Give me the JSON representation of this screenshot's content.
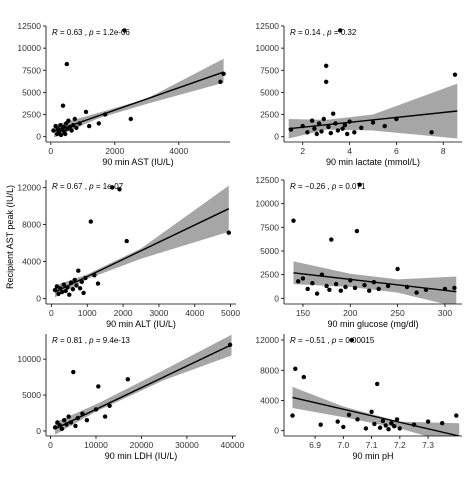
{
  "figure": {
    "shared_ylabel": "Recipient AST peak (IU/L)",
    "colors": {
      "points": "#000000",
      "fit_line": "#000000",
      "confidence_band": "#a6a6a6",
      "axis": "#000000"
    }
  },
  "chart_data": [
    {
      "type": "scatter",
      "xlabel": "90 min AST (IU/L)",
      "ylabel": "",
      "stat": {
        "r": "0.63",
        "p": "1.2e-06"
      },
      "xlim": [
        -150,
        5600
      ],
      "ylim": [
        -600,
        12500
      ],
      "xticks": [
        0,
        2000,
        4000
      ],
      "xticklabels": [
        "0",
        "2000",
        "4000"
      ],
      "yticks": [
        0,
        2500,
        5000,
        7500,
        10000,
        12500
      ],
      "yticklabels": [
        "0",
        "2500",
        "5000",
        "7500",
        "10000",
        "12500"
      ],
      "fit": {
        "x": [
          100,
          5400
        ],
        "y": [
          600,
          7300
        ]
      },
      "band": {
        "x": [
          100,
          1500,
          3000,
          5400
        ],
        "lower": [
          -100,
          2100,
          3700,
          6100
        ],
        "upper": [
          1300,
          2700,
          4300,
          8800
        ]
      },
      "points": [
        [
          80,
          700
        ],
        [
          150,
          1200
        ],
        [
          200,
          300
        ],
        [
          220,
          900
        ],
        [
          250,
          500
        ],
        [
          300,
          1300
        ],
        [
          320,
          200
        ],
        [
          350,
          800
        ],
        [
          380,
          3500
        ],
        [
          400,
          1100
        ],
        [
          420,
          600
        ],
        [
          450,
          300
        ],
        [
          480,
          1500
        ],
        [
          500,
          8200
        ],
        [
          520,
          900
        ],
        [
          550,
          1800
        ],
        [
          600,
          1100
        ],
        [
          650,
          700
        ],
        [
          700,
          1300
        ],
        [
          750,
          2000
        ],
        [
          800,
          1000
        ],
        [
          900,
          1500
        ],
        [
          1100,
          2800
        ],
        [
          1200,
          1200
        ],
        [
          1500,
          1500
        ],
        [
          1700,
          2500
        ],
        [
          2300,
          12000
        ],
        [
          2500,
          2000
        ],
        [
          5300,
          6200
        ],
        [
          5400,
          7100
        ]
      ]
    },
    {
      "type": "scatter",
      "xlabel": "90 min lactate (mmol/L)",
      "ylabel": "",
      "stat": {
        "r": "0.14",
        "p": "0.32"
      },
      "xlim": [
        1.2,
        8.8
      ],
      "ylim": [
        -600,
        12500
      ],
      "xticks": [
        2,
        4,
        6,
        8
      ],
      "xticklabels": [
        "2",
        "4",
        "6",
        "8"
      ],
      "yticks": [
        0,
        2500,
        5000,
        7500,
        10000,
        12500
      ],
      "yticklabels": [
        "0",
        "2500",
        "5000",
        "7500",
        "10000",
        "12500"
      ],
      "fit": {
        "x": [
          1.4,
          8.6
        ],
        "y": [
          900,
          2900
        ]
      },
      "band": {
        "x": [
          1.4,
          3,
          5,
          8.6
        ],
        "lower": [
          -200,
          800,
          700,
          -200
        ],
        "upper": [
          2000,
          1900,
          2500,
          6000
        ]
      },
      "points": [
        [
          1.5,
          800
        ],
        [
          2.0,
          1200
        ],
        [
          2.2,
          500
        ],
        [
          2.4,
          1800
        ],
        [
          2.5,
          900
        ],
        [
          2.6,
          300
        ],
        [
          2.7,
          1500
        ],
        [
          2.8,
          600
        ],
        [
          2.9,
          2000
        ],
        [
          3.0,
          8000
        ],
        [
          3.0,
          6200
        ],
        [
          3.1,
          1100
        ],
        [
          3.2,
          400
        ],
        [
          3.3,
          2600
        ],
        [
          3.4,
          1500
        ],
        [
          3.5,
          700
        ],
        [
          3.6,
          12000
        ],
        [
          3.7,
          900
        ],
        [
          3.8,
          1300
        ],
        [
          3.9,
          300
        ],
        [
          4.0,
          1700
        ],
        [
          4.2,
          500
        ],
        [
          4.5,
          1000
        ],
        [
          5.0,
          1600
        ],
        [
          5.5,
          1200
        ],
        [
          6.0,
          2000
        ],
        [
          7.5,
          500
        ],
        [
          8.5,
          7000
        ]
      ]
    },
    {
      "type": "scatter",
      "xlabel": "90 min ALT (IU/L)",
      "ylabel": "",
      "stat": {
        "r": "0.67",
        "p": "1e-07"
      },
      "xlim": [
        -150,
        5150
      ],
      "ylim": [
        -600,
        12800
      ],
      "xticks": [
        0,
        1000,
        2000,
        3000,
        4000,
        5000
      ],
      "xticklabels": [
        "0",
        "1000",
        "2000",
        "3000",
        "4000",
        "5000"
      ],
      "yticks": [
        0,
        4000,
        8000,
        12000
      ],
      "yticklabels": [
        "0",
        "4000",
        "8000",
        "12000"
      ],
      "fit": {
        "x": [
          100,
          4950
        ],
        "y": [
          700,
          9700
        ]
      },
      "band": {
        "x": [
          100,
          1000,
          2500,
          4950
        ],
        "lower": [
          100,
          2100,
          4300,
          7200
        ],
        "upper": [
          1400,
          2600,
          5400,
          12200
        ]
      },
      "points": [
        [
          100,
          900
        ],
        [
          150,
          1300
        ],
        [
          200,
          500
        ],
        [
          250,
          1100
        ],
        [
          300,
          700
        ],
        [
          350,
          1500
        ],
        [
          400,
          800
        ],
        [
          450,
          1200
        ],
        [
          500,
          400
        ],
        [
          550,
          1700
        ],
        [
          600,
          1000
        ],
        [
          650,
          2000
        ],
        [
          700,
          1400
        ],
        [
          750,
          3000
        ],
        [
          800,
          1100
        ],
        [
          850,
          1800
        ],
        [
          900,
          600
        ],
        [
          950,
          2200
        ],
        [
          1100,
          8300
        ],
        [
          1200,
          2500
        ],
        [
          1300,
          1600
        ],
        [
          1700,
          12000
        ],
        [
          1900,
          11800
        ],
        [
          2100,
          6200
        ],
        [
          4950,
          7100
        ]
      ]
    },
    {
      "type": "scatter",
      "xlabel": "90 min glucose (mg/dl)",
      "ylabel": "",
      "stat": {
        "r": "−0.26",
        "p": "0.071"
      },
      "xlim": [
        130,
        318
      ],
      "ylim": [
        -600,
        12500
      ],
      "xticks": [
        150,
        200,
        250,
        300
      ],
      "xticklabels": [
        "150",
        "200",
        "250",
        "300"
      ],
      "yticks": [
        0,
        2500,
        5000,
        7500,
        10000,
        12500
      ],
      "yticklabels": [
        "0",
        "2500",
        "5000",
        "7500",
        "10000",
        "12500"
      ],
      "fit": {
        "x": [
          140,
          312
        ],
        "y": [
          2700,
          700
        ]
      },
      "band": {
        "x": [
          140,
          200,
          250,
          312
        ],
        "lower": [
          1500,
          1200,
          600,
          -900
        ],
        "upper": [
          3900,
          2600,
          2000,
          2300
        ]
      },
      "points": [
        [
          140,
          8200
        ],
        [
          145,
          1800
        ],
        [
          150,
          2100
        ],
        [
          155,
          1000
        ],
        [
          160,
          1600
        ],
        [
          165,
          500
        ],
        [
          170,
          2500
        ],
        [
          175,
          1300
        ],
        [
          178,
          900
        ],
        [
          180,
          6200
        ],
        [
          185,
          1500
        ],
        [
          190,
          800
        ],
        [
          195,
          1200
        ],
        [
          200,
          1900
        ],
        [
          205,
          1100
        ],
        [
          207,
          7100
        ],
        [
          210,
          12000
        ],
        [
          215,
          1400
        ],
        [
          220,
          800
        ],
        [
          225,
          1700
        ],
        [
          230,
          1000
        ],
        [
          240,
          1300
        ],
        [
          250,
          3100
        ],
        [
          260,
          1200
        ],
        [
          270,
          600
        ],
        [
          280,
          900
        ],
        [
          300,
          1000
        ],
        [
          310,
          1100
        ]
      ]
    },
    {
      "type": "scatter",
      "xlabel": "90 min LDH (IU/L)",
      "ylabel": "",
      "stat": {
        "r": "0.81",
        "p": "9.4e-13"
      },
      "xlim": [
        -1000,
        40800
      ],
      "ylim": [
        -700,
        13500
      ],
      "xticks": [
        0,
        10000,
        20000,
        30000,
        40000
      ],
      "xticklabels": [
        "0",
        "10000",
        "20000",
        "30000",
        "40000"
      ],
      "yticks": [
        0,
        5000,
        10000
      ],
      "yticklabels": [
        "0",
        "5000",
        "10000"
      ],
      "fit": {
        "x": [
          1000,
          39800
        ],
        "y": [
          300,
          12000
        ]
      },
      "band": {
        "x": [
          1000,
          10000,
          25000,
          39800
        ],
        "lower": [
          -500,
          2700,
          7100,
          10500
        ],
        "upper": [
          1200,
          3700,
          8500,
          13400
        ]
      },
      "points": [
        [
          1000,
          500
        ],
        [
          1500,
          1200
        ],
        [
          2000,
          800
        ],
        [
          2500,
          300
        ],
        [
          3000,
          1500
        ],
        [
          3500,
          900
        ],
        [
          4000,
          2000
        ],
        [
          4500,
          1200
        ],
        [
          5000,
          8200
        ],
        [
          5500,
          700
        ],
        [
          6000,
          1800
        ],
        [
          7000,
          2400
        ],
        [
          8000,
          1500
        ],
        [
          10000,
          3000
        ],
        [
          10500,
          6200
        ],
        [
          12000,
          2000
        ],
        [
          13000,
          3500
        ],
        [
          17000,
          7200
        ],
        [
          39500,
          12000
        ]
      ]
    },
    {
      "type": "scatter",
      "xlabel": "90 min pH",
      "ylabel": "",
      "stat": {
        "r": "−0.51",
        "p": "0.00015"
      },
      "xlim": [
        6.79,
        7.42
      ],
      "ylim": [
        -700,
        12800
      ],
      "xticks": [
        6.9,
        7.0,
        7.1,
        7.2,
        7.3
      ],
      "xticklabels": [
        "6.9",
        "7.0",
        "7.1",
        "7.2",
        "7.3"
      ],
      "yticks": [
        0,
        4000,
        8000,
        12000
      ],
      "yticklabels": [
        "0",
        "4000",
        "8000",
        "12000"
      ],
      "fit": {
        "x": [
          6.82,
          7.41
        ],
        "y": [
          4400,
          -700
        ]
      },
      "band": {
        "x": [
          6.82,
          7.0,
          7.2,
          7.41
        ],
        "lower": [
          3000,
          1800,
          300,
          -2000
        ],
        "upper": [
          5800,
          3200,
          1200,
          1000
        ]
      },
      "points": [
        [
          6.82,
          2000
        ],
        [
          6.83,
          8200
        ],
        [
          6.86,
          7100
        ],
        [
          6.92,
          800
        ],
        [
          6.98,
          1200
        ],
        [
          7.0,
          500
        ],
        [
          7.02,
          2100
        ],
        [
          7.03,
          12000
        ],
        [
          7.05,
          1500
        ],
        [
          7.08,
          300
        ],
        [
          7.1,
          2500
        ],
        [
          7.11,
          900
        ],
        [
          7.12,
          6200
        ],
        [
          7.13,
          400
        ],
        [
          7.14,
          1300
        ],
        [
          7.15,
          700
        ],
        [
          7.16,
          200
        ],
        [
          7.17,
          1000
        ],
        [
          7.18,
          600
        ],
        [
          7.19,
          1500
        ],
        [
          7.2,
          300
        ],
        [
          7.25,
          800
        ],
        [
          7.3,
          1200
        ],
        [
          7.35,
          1000
        ],
        [
          7.4,
          2000
        ]
      ]
    }
  ]
}
